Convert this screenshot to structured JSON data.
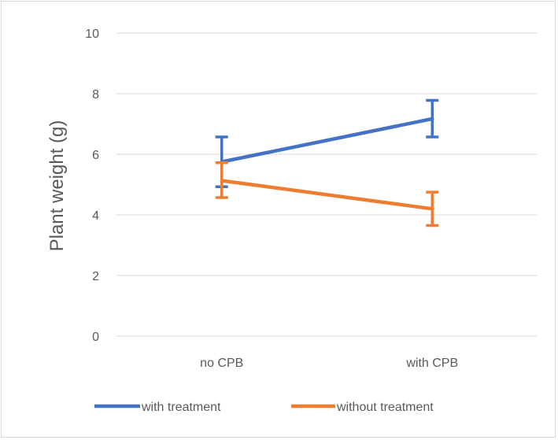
{
  "chart_data": {
    "type": "line",
    "title": "",
    "xlabel": "",
    "ylabel": "Plant weight (g)",
    "categories": [
      "no CPB",
      "with CPB"
    ],
    "ylim": [
      0,
      10
    ],
    "yticks": [
      0,
      2,
      4,
      6,
      8,
      10
    ],
    "grid": true,
    "legend_position": "bottom",
    "series": [
      {
        "name": "with treatment",
        "color": "#4472C4",
        "values": [
          5.75,
          7.17
        ],
        "error_low": [
          4.93,
          6.57
        ],
        "error_high": [
          6.57,
          7.78
        ]
      },
      {
        "name": "without treatment",
        "color": "#ED7D31",
        "values": [
          5.13,
          4.2
        ],
        "error_low": [
          4.57,
          3.65
        ],
        "error_high": [
          5.72,
          4.75
        ]
      }
    ]
  }
}
